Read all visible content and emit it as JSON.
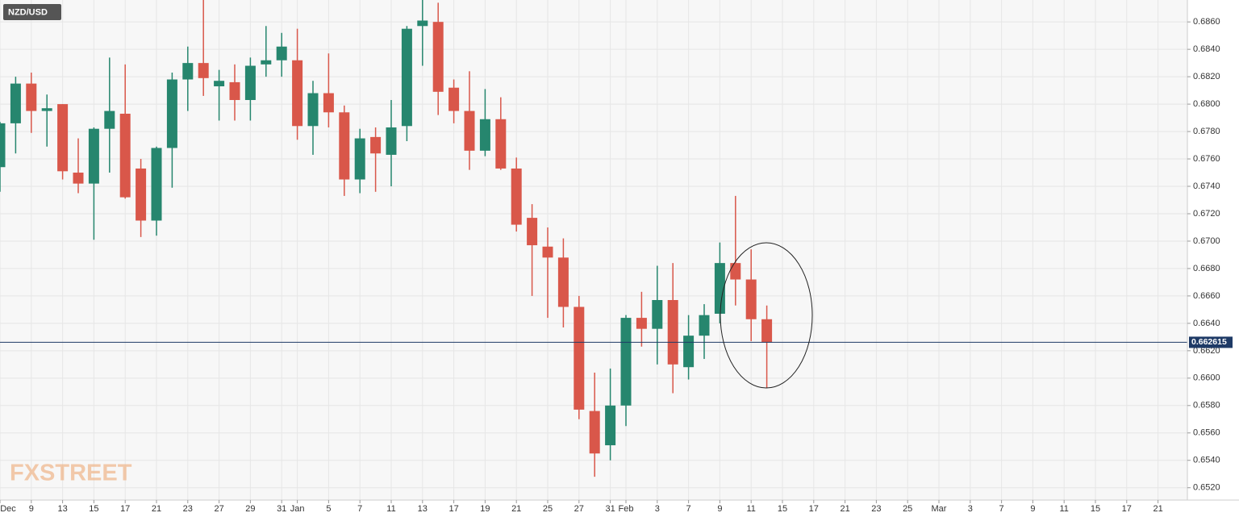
{
  "chart_data": {
    "type": "candlestick",
    "title": "NZD/USD",
    "watermark": "FXSTREET",
    "categories": [
      "Dec",
      null,
      "9",
      null,
      "13",
      null,
      "15",
      null,
      "17",
      null,
      "21",
      null,
      "23",
      null,
      "27",
      null,
      "29",
      null,
      "31",
      "Jan",
      null,
      "5",
      null,
      "7",
      null,
      "11",
      null,
      "13",
      null,
      "17",
      null,
      "19",
      null,
      "21",
      null,
      "25",
      null,
      "27",
      null,
      "31",
      "Feb",
      null,
      "3",
      null,
      "7",
      null,
      "9",
      null,
      "11",
      null,
      "15",
      null,
      "17",
      null,
      "21",
      null,
      "23",
      null,
      "25",
      null,
      "Mar",
      null,
      "3",
      null,
      "7",
      null,
      "9",
      null,
      "11",
      null,
      "15",
      null,
      "17",
      null,
      "21",
      null
    ],
    "open": [
      0.6754,
      0.6786,
      0.6815,
      0.6795,
      0.68,
      0.675,
      0.6742,
      0.6782,
      0.6793,
      0.6753,
      0.6715,
      0.6768,
      0.6818,
      0.683,
      0.6813,
      0.6816,
      0.6803,
      0.6829,
      0.6832,
      0.6832,
      0.6784,
      0.6808,
      0.6794,
      0.6745,
      0.6776,
      0.6763,
      0.6784,
      0.6857,
      0.686,
      0.6812,
      0.6795,
      0.6766,
      0.6789,
      0.6753,
      0.6717,
      0.6696,
      0.6688,
      0.6652,
      0.6576,
      0.6551,
      0.658,
      0.6644,
      0.6636,
      0.6657,
      0.6608,
      0.6631,
      0.6647,
      0.6684,
      0.6672,
      0.6643,
      null,
      null,
      null,
      null,
      null,
      null,
      null,
      null,
      null,
      null,
      null,
      null,
      null,
      null,
      null,
      null,
      null,
      null,
      null,
      null,
      null,
      null,
      null,
      null,
      null,
      null
    ],
    "high": [
      0.6787,
      0.682,
      0.6823,
      0.6807,
      0.68,
      0.6775,
      0.6783,
      0.6834,
      0.6829,
      0.676,
      0.6769,
      0.6823,
      0.6842,
      0.6876,
      0.6825,
      0.6829,
      0.6834,
      0.6857,
      0.6852,
      0.6855,
      0.6817,
      0.6837,
      0.6799,
      0.6782,
      0.6783,
      0.6803,
      0.6857,
      0.6876,
      0.6874,
      0.6818,
      0.6824,
      0.6811,
      0.6805,
      0.6761,
      0.6727,
      0.671,
      0.6702,
      0.666,
      0.6604,
      0.6607,
      0.6646,
      0.6663,
      0.6682,
      0.6684,
      0.6646,
      0.6654,
      0.6699,
      0.6733,
      0.6694,
      0.6653,
      null,
      null,
      null,
      null,
      null,
      null,
      null,
      null,
      null,
      null,
      null,
      null,
      null,
      null,
      null,
      null,
      null,
      null,
      null,
      null,
      null,
      null,
      null,
      null,
      null,
      null
    ],
    "low": [
      0.6736,
      0.6764,
      0.6779,
      0.6769,
      0.6745,
      0.6735,
      0.6701,
      0.675,
      0.6731,
      0.6703,
      0.6704,
      0.6739,
      0.6795,
      0.6806,
      0.6788,
      0.6788,
      0.6788,
      0.682,
      0.682,
      0.6774,
      0.6763,
      0.6783,
      0.6733,
      0.6735,
      0.6736,
      0.674,
      0.6773,
      0.6828,
      0.6792,
      0.6786,
      0.6752,
      0.6762,
      0.6752,
      0.6707,
      0.666,
      0.6644,
      0.6637,
      0.657,
      0.6528,
      0.654,
      0.6565,
      0.6623,
      0.661,
      0.6589,
      0.6599,
      0.6614,
      0.664,
      0.6653,
      0.6627,
      0.6593,
      null,
      null,
      null,
      null,
      null,
      null,
      null,
      null,
      null,
      null,
      null,
      null,
      null,
      null,
      null,
      null,
      null,
      null,
      null,
      null,
      null,
      null,
      null,
      null,
      null,
      null
    ],
    "close": [
      0.6786,
      0.6815,
      0.6795,
      0.6797,
      0.6751,
      0.6742,
      0.6782,
      0.6795,
      0.6732,
      0.6715,
      0.6768,
      0.6818,
      0.683,
      0.6819,
      0.6817,
      0.6803,
      0.6828,
      0.6832,
      0.6842,
      0.6784,
      0.6808,
      0.6794,
      0.6745,
      0.6775,
      0.6764,
      0.6783,
      0.6855,
      0.6861,
      0.6809,
      0.6795,
      0.6766,
      0.6789,
      0.6753,
      0.6712,
      0.6697,
      0.6688,
      0.6652,
      0.6577,
      0.6545,
      0.658,
      0.6644,
      0.6636,
      0.6657,
      0.661,
      0.6631,
      0.6646,
      0.6684,
      0.6672,
      0.6643,
      0.6626,
      null,
      null,
      null,
      null,
      null,
      null,
      null,
      null,
      null,
      null,
      null,
      null,
      null,
      null,
      null,
      null,
      null,
      null,
      null,
      null,
      null,
      null,
      null,
      null,
      null,
      null
    ],
    "up_color": "#26866e",
    "down_color": "#d9574a",
    "last_price": 0.662615,
    "last_price_color": "#1e3a66",
    "ylim": [
      0.6511,
      0.6876
    ],
    "yticks": [
      {
        "value": 0.652,
        "label": "0.6520"
      },
      {
        "value": 0.654,
        "label": "0.6540"
      },
      {
        "value": 0.656,
        "label": "0.6560"
      },
      {
        "value": 0.658,
        "label": "0.6580"
      },
      {
        "value": 0.66,
        "label": "0.6600"
      },
      {
        "value": 0.662,
        "label": "0.6620"
      },
      {
        "value": 0.664,
        "label": "0.6640"
      },
      {
        "value": 0.666,
        "label": "0.6660"
      },
      {
        "value": 0.668,
        "label": "0.6680"
      },
      {
        "value": 0.67,
        "label": "0.6700"
      },
      {
        "value": 0.672,
        "label": "0.6720"
      },
      {
        "value": 0.674,
        "label": "0.6740"
      },
      {
        "value": 0.676,
        "label": "0.6760"
      },
      {
        "value": 0.678,
        "label": "0.6780"
      },
      {
        "value": 0.68,
        "label": "0.6800"
      },
      {
        "value": 0.682,
        "label": "0.6820"
      },
      {
        "value": 0.684,
        "label": "0.6840"
      },
      {
        "value": 0.686,
        "label": "0.6860"
      }
    ],
    "grid": true
  }
}
